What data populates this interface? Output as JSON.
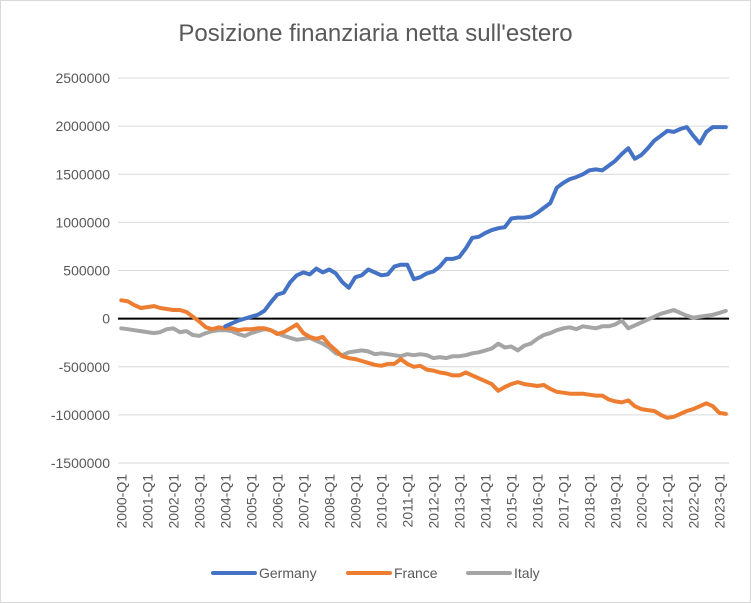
{
  "chart_data": {
    "type": "line",
    "title": "Posizione finanziaria netta sull'estero",
    "xlabel": "",
    "ylabel": "",
    "ylim": [
      -1500000,
      2500000
    ],
    "yticks": [
      2500000,
      2000000,
      1500000,
      1000000,
      500000,
      0,
      -500000,
      -1000000,
      -1500000
    ],
    "ytick_labels": [
      "2500000",
      "2000000",
      "1500000",
      "1000000",
      "500000",
      "0",
      "-500000",
      "-1000000",
      "-1500000"
    ],
    "xtick_labels": [
      "2000-Q1",
      "2001-Q1",
      "2002-Q1",
      "2003-Q1",
      "2004-Q1",
      "2005-Q1",
      "2006-Q1",
      "2007-Q1",
      "2008-Q1",
      "2009-Q1",
      "2010-Q1",
      "2011-Q1",
      "2012-Q1",
      "2013-Q1",
      "2014-Q1",
      "2015-Q1",
      "2016-Q1",
      "2017-Q1",
      "2018-Q1",
      "2019-Q1",
      "2020-Q1",
      "2021-Q1",
      "2022-Q1",
      "2023-Q1"
    ],
    "first_period": "2000-Q1",
    "last_period": "2023-Q4",
    "grid": true,
    "legend_position": "bottom",
    "series": [
      {
        "name": "Germany",
        "color": "#4472c4",
        "values": [
          null,
          null,
          null,
          null,
          null,
          null,
          null,
          null,
          null,
          null,
          null,
          null,
          null,
          null,
          null,
          null,
          -80000,
          -50000,
          -20000,
          0,
          20000,
          40000,
          80000,
          170000,
          250000,
          270000,
          380000,
          450000,
          480000,
          460000,
          520000,
          480000,
          510000,
          470000,
          380000,
          320000,
          430000,
          450000,
          510000,
          480000,
          450000,
          460000,
          540000,
          560000,
          560000,
          410000,
          430000,
          470000,
          490000,
          540000,
          620000,
          620000,
          640000,
          730000,
          840000,
          850000,
          890000,
          920000,
          940000,
          950000,
          1040000,
          1050000,
          1050000,
          1060000,
          1100000,
          1150000,
          1200000,
          1360000,
          1410000,
          1450000,
          1470000,
          1500000,
          1540000,
          1550000,
          1540000,
          1590000,
          1640000,
          1710000,
          1770000,
          1660000,
          1700000,
          1770000,
          1850000,
          1900000,
          1950000,
          1940000,
          1970000,
          1990000,
          1900000,
          1820000,
          1940000,
          1990000,
          1990000,
          1990000
        ]
      },
      {
        "name": "France",
        "color": "#ed7d31",
        "values": [
          190000,
          180000,
          140000,
          110000,
          120000,
          130000,
          110000,
          100000,
          90000,
          90000,
          70000,
          20000,
          -30000,
          -90000,
          -110000,
          -90000,
          -100000,
          -100000,
          -120000,
          -110000,
          -110000,
          -100000,
          -100000,
          -120000,
          -160000,
          -140000,
          -100000,
          -60000,
          -150000,
          -190000,
          -210000,
          -190000,
          -270000,
          -330000,
          -390000,
          -410000,
          -420000,
          -440000,
          -460000,
          -480000,
          -490000,
          -470000,
          -470000,
          -420000,
          -470000,
          -500000,
          -490000,
          -530000,
          -540000,
          -560000,
          -570000,
          -590000,
          -590000,
          -560000,
          -590000,
          -620000,
          -650000,
          -680000,
          -750000,
          -710000,
          -680000,
          -660000,
          -680000,
          -690000,
          -700000,
          -690000,
          -730000,
          -760000,
          -770000,
          -780000,
          -780000,
          -780000,
          -790000,
          -800000,
          -800000,
          -840000,
          -860000,
          -870000,
          -850000,
          -910000,
          -940000,
          -950000,
          -960000,
          -1000000,
          -1030000,
          -1020000,
          -990000,
          -960000,
          -940000,
          -910000,
          -880000,
          -910000,
          -980000,
          -990000
        ]
      },
      {
        "name": "Italy",
        "color": "#a5a5a5",
        "values": [
          -100000,
          -110000,
          -120000,
          -130000,
          -140000,
          -150000,
          -140000,
          -110000,
          -100000,
          -140000,
          -130000,
          -170000,
          -180000,
          -150000,
          -130000,
          -120000,
          -120000,
          -130000,
          -160000,
          -180000,
          -150000,
          -130000,
          -110000,
          -120000,
          -150000,
          -180000,
          -200000,
          -220000,
          -210000,
          -200000,
          -230000,
          -260000,
          -300000,
          -360000,
          -380000,
          -350000,
          -340000,
          -330000,
          -340000,
          -370000,
          -360000,
          -370000,
          -380000,
          -390000,
          -370000,
          -380000,
          -370000,
          -380000,
          -410000,
          -400000,
          -410000,
          -390000,
          -390000,
          -380000,
          -360000,
          -350000,
          -330000,
          -310000,
          -260000,
          -300000,
          -290000,
          -330000,
          -280000,
          -260000,
          -210000,
          -170000,
          -150000,
          -120000,
          -100000,
          -90000,
          -110000,
          -80000,
          -90000,
          -100000,
          -80000,
          -80000,
          -60000,
          -20000,
          -100000,
          -70000,
          -40000,
          -10000,
          20000,
          50000,
          70000,
          90000,
          60000,
          30000,
          10000,
          20000,
          30000,
          40000,
          60000,
          80000
        ]
      }
    ]
  }
}
